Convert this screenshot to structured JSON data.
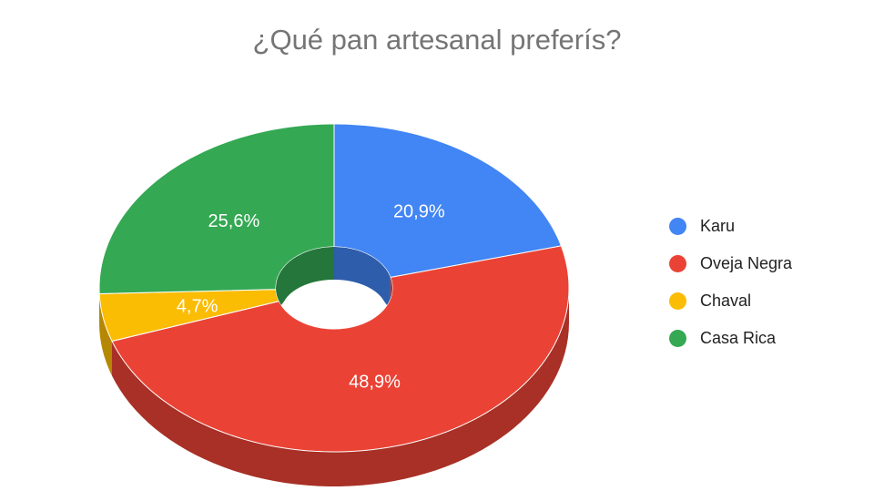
{
  "chart_data": {
    "type": "pie",
    "variant": "3d-donut",
    "title": "¿Qué pan artesanal preferís?",
    "categories": [
      "Karu",
      "Oveja Negra",
      "Chaval",
      "Casa Rica"
    ],
    "values": [
      20.9,
      48.9,
      4.7,
      25.6
    ],
    "value_labels": [
      "20,9%",
      "48,9%",
      "4,7%",
      "25,6%"
    ],
    "colors": [
      "#4285F4",
      "#EA4335",
      "#FBBC04",
      "#34A853"
    ],
    "legend_position": "right"
  }
}
